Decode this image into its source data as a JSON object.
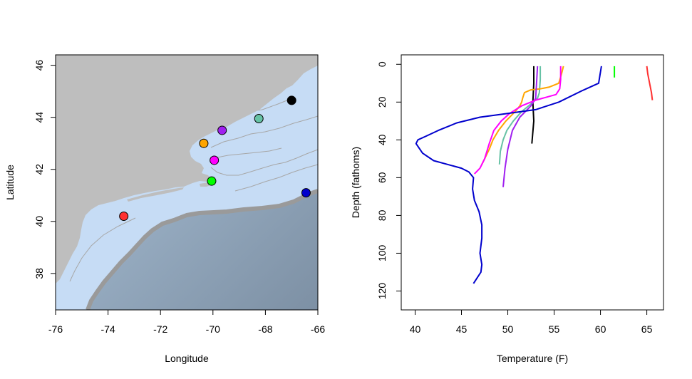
{
  "chart_data": [
    {
      "type": "scatter",
      "subtype": "map",
      "xlabel": "Longitude",
      "ylabel": "Latitude",
      "xlim": [
        -76,
        -66
      ],
      "ylim": [
        36.6,
        46.4
      ],
      "xticks": [
        "-76",
        "-74",
        "-72",
        "-70",
        "-68",
        "-66"
      ],
      "yticks": [
        "38",
        "40",
        "42",
        "44",
        "46"
      ],
      "xtick_values": [
        -76,
        -74,
        -72,
        -70,
        -68,
        -66
      ],
      "ytick_values": [
        38,
        40,
        42,
        44,
        46
      ],
      "land_color": "#bebebe",
      "shelf_color": "#c6dcf5",
      "deep_color": "#7d90a4",
      "stations": [
        {
          "lon": -67.0,
          "lat": 44.65,
          "color": "#000000"
        },
        {
          "lon": -68.25,
          "lat": 43.95,
          "color": "#66c2a5"
        },
        {
          "lon": -69.65,
          "lat": 43.5,
          "color": "#a020f0"
        },
        {
          "lon": -70.35,
          "lat": 43.0,
          "color": "#ffa500"
        },
        {
          "lon": -69.95,
          "lat": 42.35,
          "color": "#ff00ff"
        },
        {
          "lon": -70.05,
          "lat": 41.55,
          "color": "#00ff00"
        },
        {
          "lon": -66.45,
          "lat": 41.1,
          "color": "#0000cd"
        },
        {
          "lon": -73.4,
          "lat": 40.2,
          "color": "#ff3030"
        }
      ]
    },
    {
      "type": "line",
      "xlabel": "Temperature (F)",
      "ylabel": "Depth (fathoms)",
      "xlim": [
        38.5,
        66.8
      ],
      "ylim": [
        130,
        -5
      ],
      "xticks": [
        "40",
        "45",
        "50",
        "55",
        "60",
        "65"
      ],
      "yticks": [
        "0",
        "20",
        "40",
        "60",
        "80",
        "100",
        "120"
      ],
      "xtick_values": [
        40,
        45,
        50,
        55,
        60,
        65
      ],
      "ytick_values": [
        0,
        20,
        40,
        60,
        80,
        100,
        120
      ],
      "series": [
        {
          "color": "#000000",
          "x": [
            52.8,
            52.8,
            52.7,
            52.8,
            52.6
          ],
          "y": [
            1,
            10,
            20,
            30,
            42
          ]
        },
        {
          "color": "#66c2a5",
          "x": [
            53.5,
            53.5,
            53.4,
            53.2,
            52.5,
            51.5,
            50.6,
            49.9,
            49.5,
            49.2,
            49.1
          ],
          "y": [
            1,
            8,
            15,
            18,
            21,
            25,
            30,
            35,
            40,
            46,
            53
          ]
        },
        {
          "color": "#ffa500",
          "x": [
            56.0,
            55.8,
            55.5,
            54.5,
            53.5,
            52.5,
            51.8,
            51.6,
            51.5,
            51.3,
            50.8,
            49.8,
            49.0,
            48.4,
            48.0,
            47.5,
            47.2
          ],
          "y": [
            1,
            5,
            10,
            12,
            13,
            13.5,
            15,
            18,
            20,
            22,
            25,
            30,
            35,
            40,
            45,
            50,
            53
          ]
        },
        {
          "color": "#a020f0",
          "x": [
            53.2,
            53.1,
            53.0,
            52.5,
            51.3,
            50.5,
            50.0,
            49.7,
            49.6,
            49.5
          ],
          "y": [
            1,
            10,
            18,
            22,
            28,
            35,
            45,
            55,
            60,
            65
          ]
        },
        {
          "color": "#ff00ff",
          "x": [
            55.7,
            55.7,
            55.6,
            55.2,
            53.0,
            51.5,
            50.2,
            49.3,
            48.5,
            48.0,
            47.5,
            47.0,
            46.4
          ],
          "y": [
            1,
            8,
            13,
            16,
            19,
            22,
            26,
            30,
            35,
            42,
            50,
            55,
            58
          ]
        },
        {
          "color": "#00ff00",
          "x": [
            61.5,
            61.5
          ],
          "y": [
            1,
            7
          ]
        },
        {
          "color": "#ff3030",
          "x": [
            65.0,
            65.1,
            65.3,
            65.5,
            65.6
          ],
          "y": [
            1,
            5,
            10,
            15,
            19
          ]
        },
        {
          "color": "#0000cd",
          "x": [
            60.1,
            59.8,
            58.0,
            55.5,
            53.0,
            50.0,
            47.0,
            44.5,
            42.5,
            41.2,
            40.3,
            40.1,
            40.8,
            42.0,
            43.5,
            45.0,
            45.8,
            46.3,
            46.2,
            46.4,
            46.9,
            47.2,
            47.2,
            47.0,
            47.2,
            47.1,
            46.7,
            46.3
          ],
          "y": [
            1,
            10,
            14,
            20,
            24,
            26,
            28,
            31,
            35,
            38,
            40,
            42,
            47,
            51,
            53,
            55,
            57,
            60,
            66,
            72,
            78,
            85,
            92,
            100,
            106,
            110,
            113,
            116
          ]
        }
      ]
    }
  ]
}
